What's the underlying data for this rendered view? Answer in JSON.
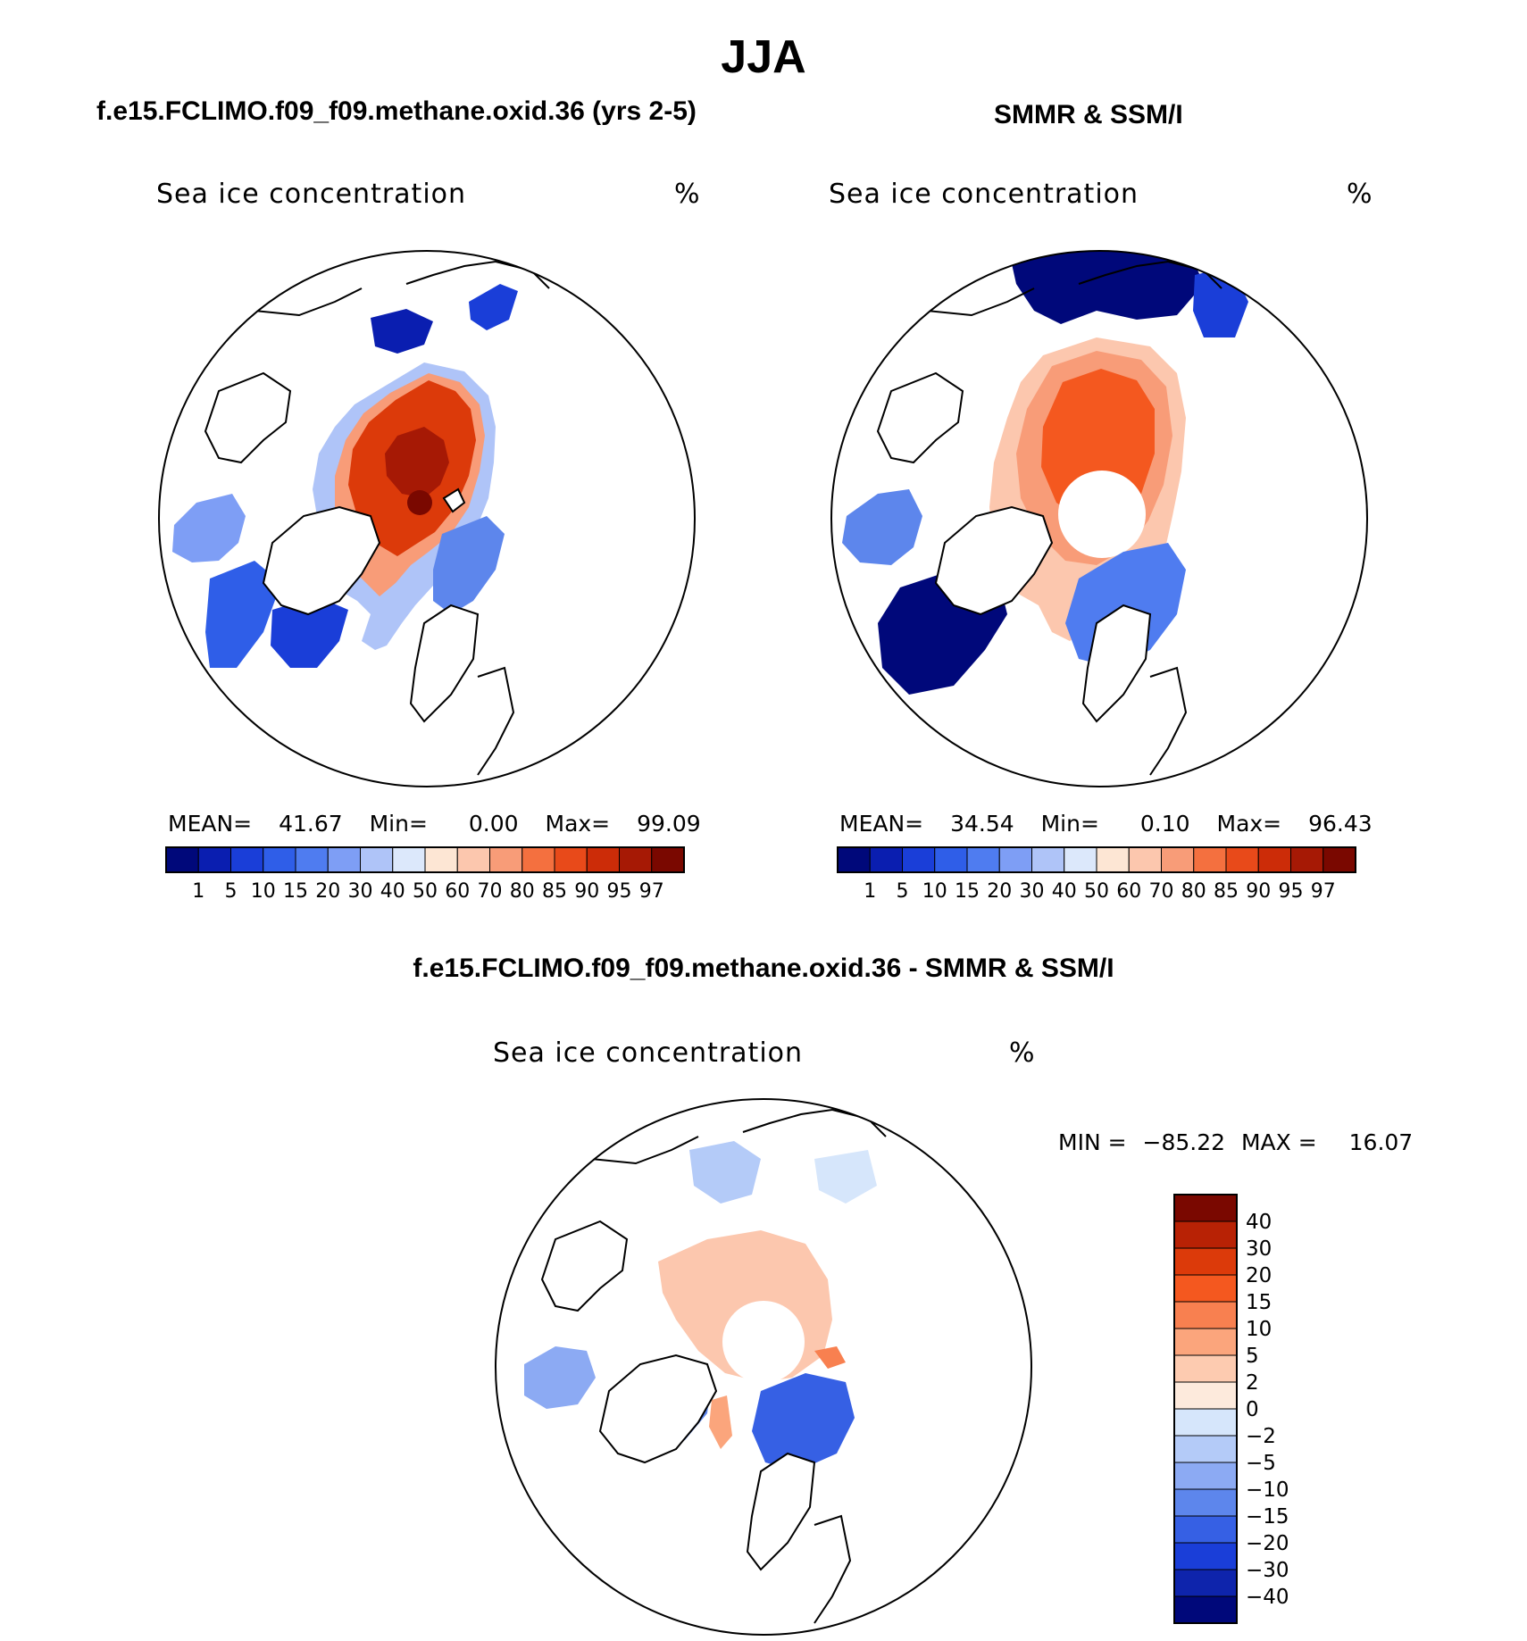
{
  "figure": {
    "season": "JJA",
    "panels": [
      {
        "title": "f.e15.FCLIMO.f09_f09.methane.oxid.36 (yrs 2-5)",
        "variable": "Sea ice concentration",
        "units": "%",
        "stats": {
          "mean_label": "MEAN=",
          "mean": "41.67",
          "min_label": "Min=",
          "min": "0.00",
          "max_label": "Max=",
          "max": "99.09"
        }
      },
      {
        "title": "SMMR & SSM/I",
        "variable": "Sea ice concentration",
        "units": "%",
        "stats": {
          "mean_label": "MEAN=",
          "mean": "34.54",
          "min_label": "Min=",
          "min": "0.10",
          "max_label": "Max=",
          "max": "96.43"
        }
      },
      {
        "title": "f.e15.FCLIMO.f09_f09.methane.oxid.36 - SMMR & SSM/I",
        "variable": "Sea ice concentration",
        "units": "%",
        "stats": {
          "min_label": "MIN =",
          "min": "−85.22",
          "max_label": "MAX =",
          "max": "16.07"
        }
      }
    ],
    "colorbar_top": {
      "ticks": [
        "1",
        "5",
        "10",
        "15",
        "20",
        "30",
        "40",
        "50",
        "60",
        "70",
        "80",
        "85",
        "90",
        "95",
        "97"
      ],
      "colors": [
        "#00087a",
        "#0a1eb0",
        "#1a3ed8",
        "#2f5ee8",
        "#4f7cf0",
        "#7e9ef5",
        "#afc4f8",
        "#dce8fb",
        "#fde6d4",
        "#fcc7ae",
        "#f89c78",
        "#f4703f",
        "#e84a1a",
        "#cc2c08",
        "#a61905",
        "#7a0800"
      ]
    },
    "colorbar_diff": {
      "ticks": [
        "40",
        "30",
        "20",
        "15",
        "10",
        "5",
        "2",
        "0",
        "−2",
        "−5",
        "−10",
        "−15",
        "−20",
        "−30",
        "−40"
      ],
      "colors": [
        "#7a0800",
        "#b82205",
        "#dc3a0a",
        "#f4581f",
        "#f88050",
        "#fba57c",
        "#fdcbb0",
        "#fdeadc",
        "#d6e6fb",
        "#b4cbf8",
        "#8caaf3",
        "#5d86ec",
        "#3660e4",
        "#1a3ed8",
        "#0e24ac",
        "#00087a"
      ]
    },
    "palette": {
      "ocean_open": "#ffffff",
      "ice_high": "#dc3a0a",
      "ice_core": "#a61905",
      "ice_mid": "#f4703f",
      "ice_low": "#5d86ec",
      "ice_verylow": "#0a1eb0"
    }
  }
}
